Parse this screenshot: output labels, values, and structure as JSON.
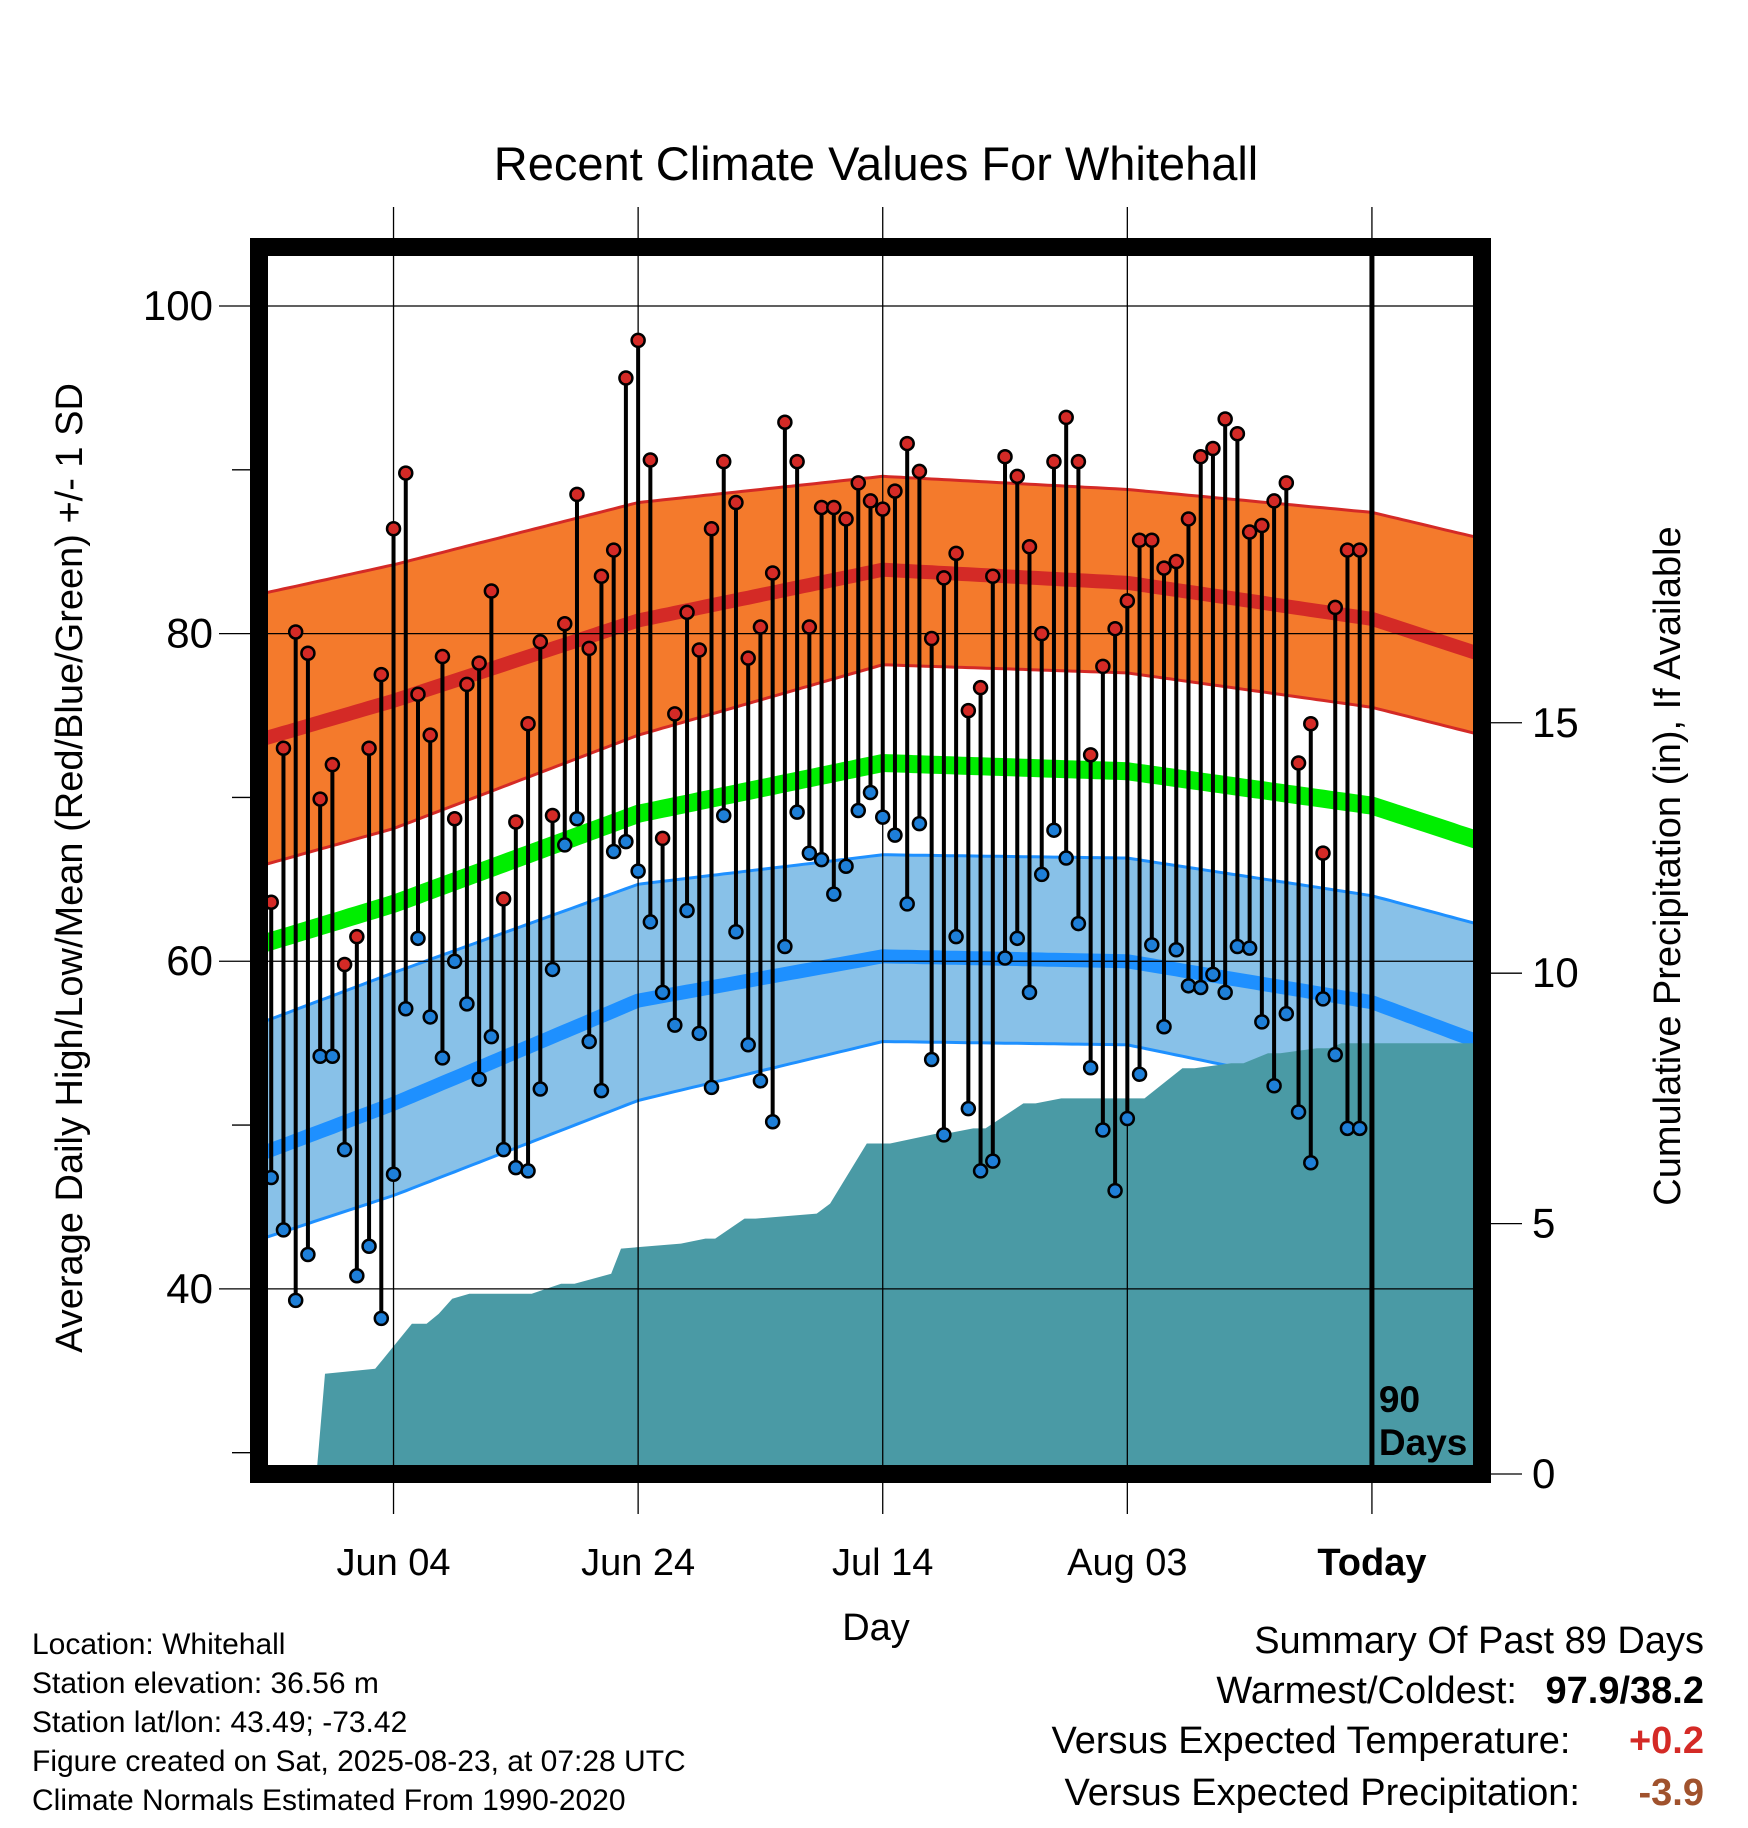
{
  "chart_data": {
    "type": "line",
    "title": "Recent Climate Values For Whitehall",
    "xlabel": "Day",
    "ylabel": "Average Daily High/Low/Mean (Red/Blue/Green) +/- 1 SD",
    "y2label": "Cumulative Precipitation (in), If Available",
    "ylim": [
      28.7,
      103.6
    ],
    "y2lim": [
      0,
      24.5
    ],
    "yticks": [
      "40",
      "60",
      "80",
      "100"
    ],
    "y2ticks": [
      "0",
      "5",
      "10",
      "15"
    ],
    "xticks": [
      "Jun 04",
      "Jun 24",
      "Jul 14",
      "Aug 03",
      "Today"
    ],
    "xtick_days": [
      0,
      20,
      40,
      60,
      80
    ],
    "x_range_days": [
      -11,
      89
    ],
    "today_marker_label": "90 Days",
    "grid": true,
    "colors": {
      "high_band": "#f47a2c",
      "high_mean": "#d42a26",
      "mean_line": "#00ee00",
      "low_band": "#88c1e8",
      "low_mean": "#1e90ff",
      "precip": "#4a9aa5",
      "high_marker": "#d42a26",
      "low_marker": "#1e7fd8"
    },
    "normals": {
      "day": [
        -11,
        0,
        20,
        40,
        60,
        80,
        89
      ],
      "high_mean": [
        73.5,
        75.9,
        80.8,
        83.9,
        83.1,
        80.9,
        78.7
      ],
      "high_upper": [
        82.4,
        84.2,
        88.0,
        89.6,
        88.8,
        87.4,
        85.8
      ],
      "high_lower": [
        65.8,
        68.1,
        73.8,
        78.1,
        77.6,
        75.5,
        73.8
      ],
      "mean_line": [
        61.0,
        63.5,
        69.0,
        72.1,
        71.6,
        69.5,
        67.3
      ],
      "low_mean": [
        48.2,
        51.3,
        57.6,
        60.3,
        60.0,
        57.5,
        55.0
      ],
      "low_upper": [
        56.2,
        59.3,
        64.7,
        66.5,
        66.3,
        64.0,
        62.2
      ],
      "low_lower": [
        43.0,
        45.7,
        51.5,
        55.1,
        54.9,
        51.8,
        48.9
      ]
    },
    "series": [
      {
        "name": "High",
        "day": [
          -10,
          -9,
          -8,
          -7,
          -6,
          -5,
          -4,
          -3,
          -2,
          -1,
          0,
          1,
          2,
          3,
          4,
          5,
          6,
          7,
          8,
          9,
          10,
          11,
          12,
          13,
          14,
          15,
          16,
          17,
          18,
          19,
          20,
          21,
          22,
          23,
          24,
          25,
          26,
          27,
          28,
          29,
          30,
          31,
          32,
          33,
          34,
          35,
          36,
          37,
          38,
          39,
          40,
          41,
          42,
          43,
          44,
          45,
          46,
          47,
          48,
          49,
          50,
          51,
          52,
          53,
          54,
          55,
          56,
          57,
          58,
          59,
          60,
          61,
          62,
          63,
          64,
          65,
          66,
          67,
          68,
          69,
          70,
          71,
          72,
          73,
          74,
          75,
          76,
          77,
          78,
          79
        ],
        "values": [
          63.6,
          73.0,
          80.1,
          78.8,
          69.9,
          72.0,
          59.8,
          61.5,
          73.0,
          77.5,
          86.4,
          89.8,
          76.3,
          73.8,
          78.6,
          68.7,
          76.9,
          78.2,
          82.6,
          63.8,
          68.5,
          74.5,
          79.5,
          68.9,
          80.6,
          88.5,
          79.1,
          83.5,
          85.1,
          95.6,
          97.9,
          90.6,
          67.5,
          75.1,
          81.3,
          79.0,
          86.4,
          90.5,
          88.0,
          78.5,
          80.4,
          83.7,
          92.9,
          90.5,
          80.4,
          87.7,
          87.7,
          87.0,
          89.2,
          88.1,
          87.6,
          88.7,
          91.6,
          89.9,
          79.7,
          83.4,
          84.9,
          75.3,
          76.7,
          83.5,
          90.8,
          89.6,
          85.3,
          80.0,
          90.5,
          93.2,
          90.5,
          72.6,
          78.0,
          80.3,
          82.0,
          85.7,
          85.7,
          84.0,
          84.4,
          87.0,
          90.8,
          91.3,
          93.1,
          92.2,
          86.2,
          86.6,
          88.1,
          89.2,
          72.1,
          74.5,
          66.6,
          81.6,
          85.1,
          85.1
        ]
      },
      {
        "name": "Low",
        "day": [
          -10,
          -9,
          -8,
          -7,
          -6,
          -5,
          -4,
          -3,
          -2,
          -1,
          0,
          1,
          2,
          3,
          4,
          5,
          6,
          7,
          8,
          9,
          10,
          11,
          12,
          13,
          14,
          15,
          16,
          17,
          18,
          19,
          20,
          21,
          22,
          23,
          24,
          25,
          26,
          27,
          28,
          29,
          30,
          31,
          32,
          33,
          34,
          35,
          36,
          37,
          38,
          39,
          40,
          41,
          42,
          43,
          44,
          45,
          46,
          47,
          48,
          49,
          50,
          51,
          52,
          53,
          54,
          55,
          56,
          57,
          58,
          59,
          60,
          61,
          62,
          63,
          64,
          65,
          66,
          67,
          68,
          69,
          70,
          71,
          72,
          73,
          74,
          75,
          76,
          77,
          78,
          79
        ],
        "values": [
          46.8,
          43.6,
          39.3,
          42.1,
          54.2,
          54.2,
          48.5,
          40.8,
          42.6,
          38.2,
          47.0,
          57.1,
          61.4,
          56.6,
          54.1,
          60.0,
          57.4,
          52.8,
          55.4,
          48.5,
          47.4,
          47.2,
          52.2,
          59.5,
          67.1,
          68.7,
          55.1,
          52.1,
          66.7,
          67.3,
          65.5,
          62.4,
          58.1,
          56.1,
          63.1,
          55.6,
          52.3,
          68.9,
          61.8,
          54.9,
          52.7,
          50.2,
          60.9,
          69.1,
          66.6,
          66.2,
          64.1,
          65.8,
          69.2,
          70.3,
          68.8,
          67.7,
          63.5,
          68.4,
          54.0,
          49.4,
          61.5,
          51.0,
          47.2,
          47.8,
          60.2,
          61.4,
          58.1,
          65.3,
          68.0,
          66.3,
          62.3,
          53.5,
          49.7,
          46.0,
          50.4,
          53.1,
          61.0,
          56.0,
          60.7,
          58.5,
          58.4,
          59.2,
          58.1,
          60.9,
          60.8,
          56.3,
          52.4,
          56.8,
          50.8,
          47.7,
          57.7,
          54.3,
          49.8,
          49.8
        ]
      },
      {
        "name": "Cumulative Precipitation",
        "day": [
          -11,
          -6.3,
          -5.6,
          -1.5,
          1.5,
          2.7,
          3.7,
          4.8,
          6.2,
          11.3,
          13.7,
          14.8,
          16.3,
          17.8,
          18.6,
          23.5,
          25.5,
          26.3,
          28.7,
          29.6,
          34.6,
          35.7,
          38.7,
          39.5,
          40.6,
          44.5,
          45.3,
          47.4,
          48.4,
          51.5,
          52.5,
          54.6,
          56.3,
          59.3,
          61.4,
          64.5,
          65.5,
          68.5,
          69.5,
          71.5,
          72.5,
          75.5,
          76.5,
          77.5,
          89
        ],
        "values": [
          0,
          0,
          2.0,
          2.1,
          3.0,
          3.0,
          3.2,
          3.5,
          3.6,
          3.6,
          3.8,
          3.8,
          3.9,
          4.0,
          4.5,
          4.6,
          4.7,
          4.7,
          5.1,
          5.1,
          5.2,
          5.4,
          6.6,
          6.6,
          6.6,
          6.8,
          6.8,
          6.9,
          6.9,
          7.4,
          7.4,
          7.5,
          7.5,
          7.5,
          7.5,
          8.1,
          8.1,
          8.2,
          8.2,
          8.4,
          8.4,
          8.5,
          8.5,
          8.6,
          8.6
        ]
      }
    ]
  },
  "info": {
    "location": "Location: Whitehall",
    "elevation": "Station elevation: 36.56 m",
    "latlon": "Station lat/lon: 43.49; -73.42",
    "created": "Figure created on Sat, 2025-08-23, at 07:28 UTC",
    "normals": "Climate Normals Estimated From 1990-2020"
  },
  "summary": {
    "title": "Summary Of Past 89 Days",
    "warm_cold_label": "Warmest/Coldest:",
    "warm_cold_value": "97.9/38.2",
    "temp_label": "Versus Expected Temperature:",
    "temp_value": "+0.2",
    "temp_color": "#d42a26",
    "precip_label": "Versus Expected Precipitation:",
    "precip_value": "-3.9",
    "precip_color": "#a0522d"
  }
}
